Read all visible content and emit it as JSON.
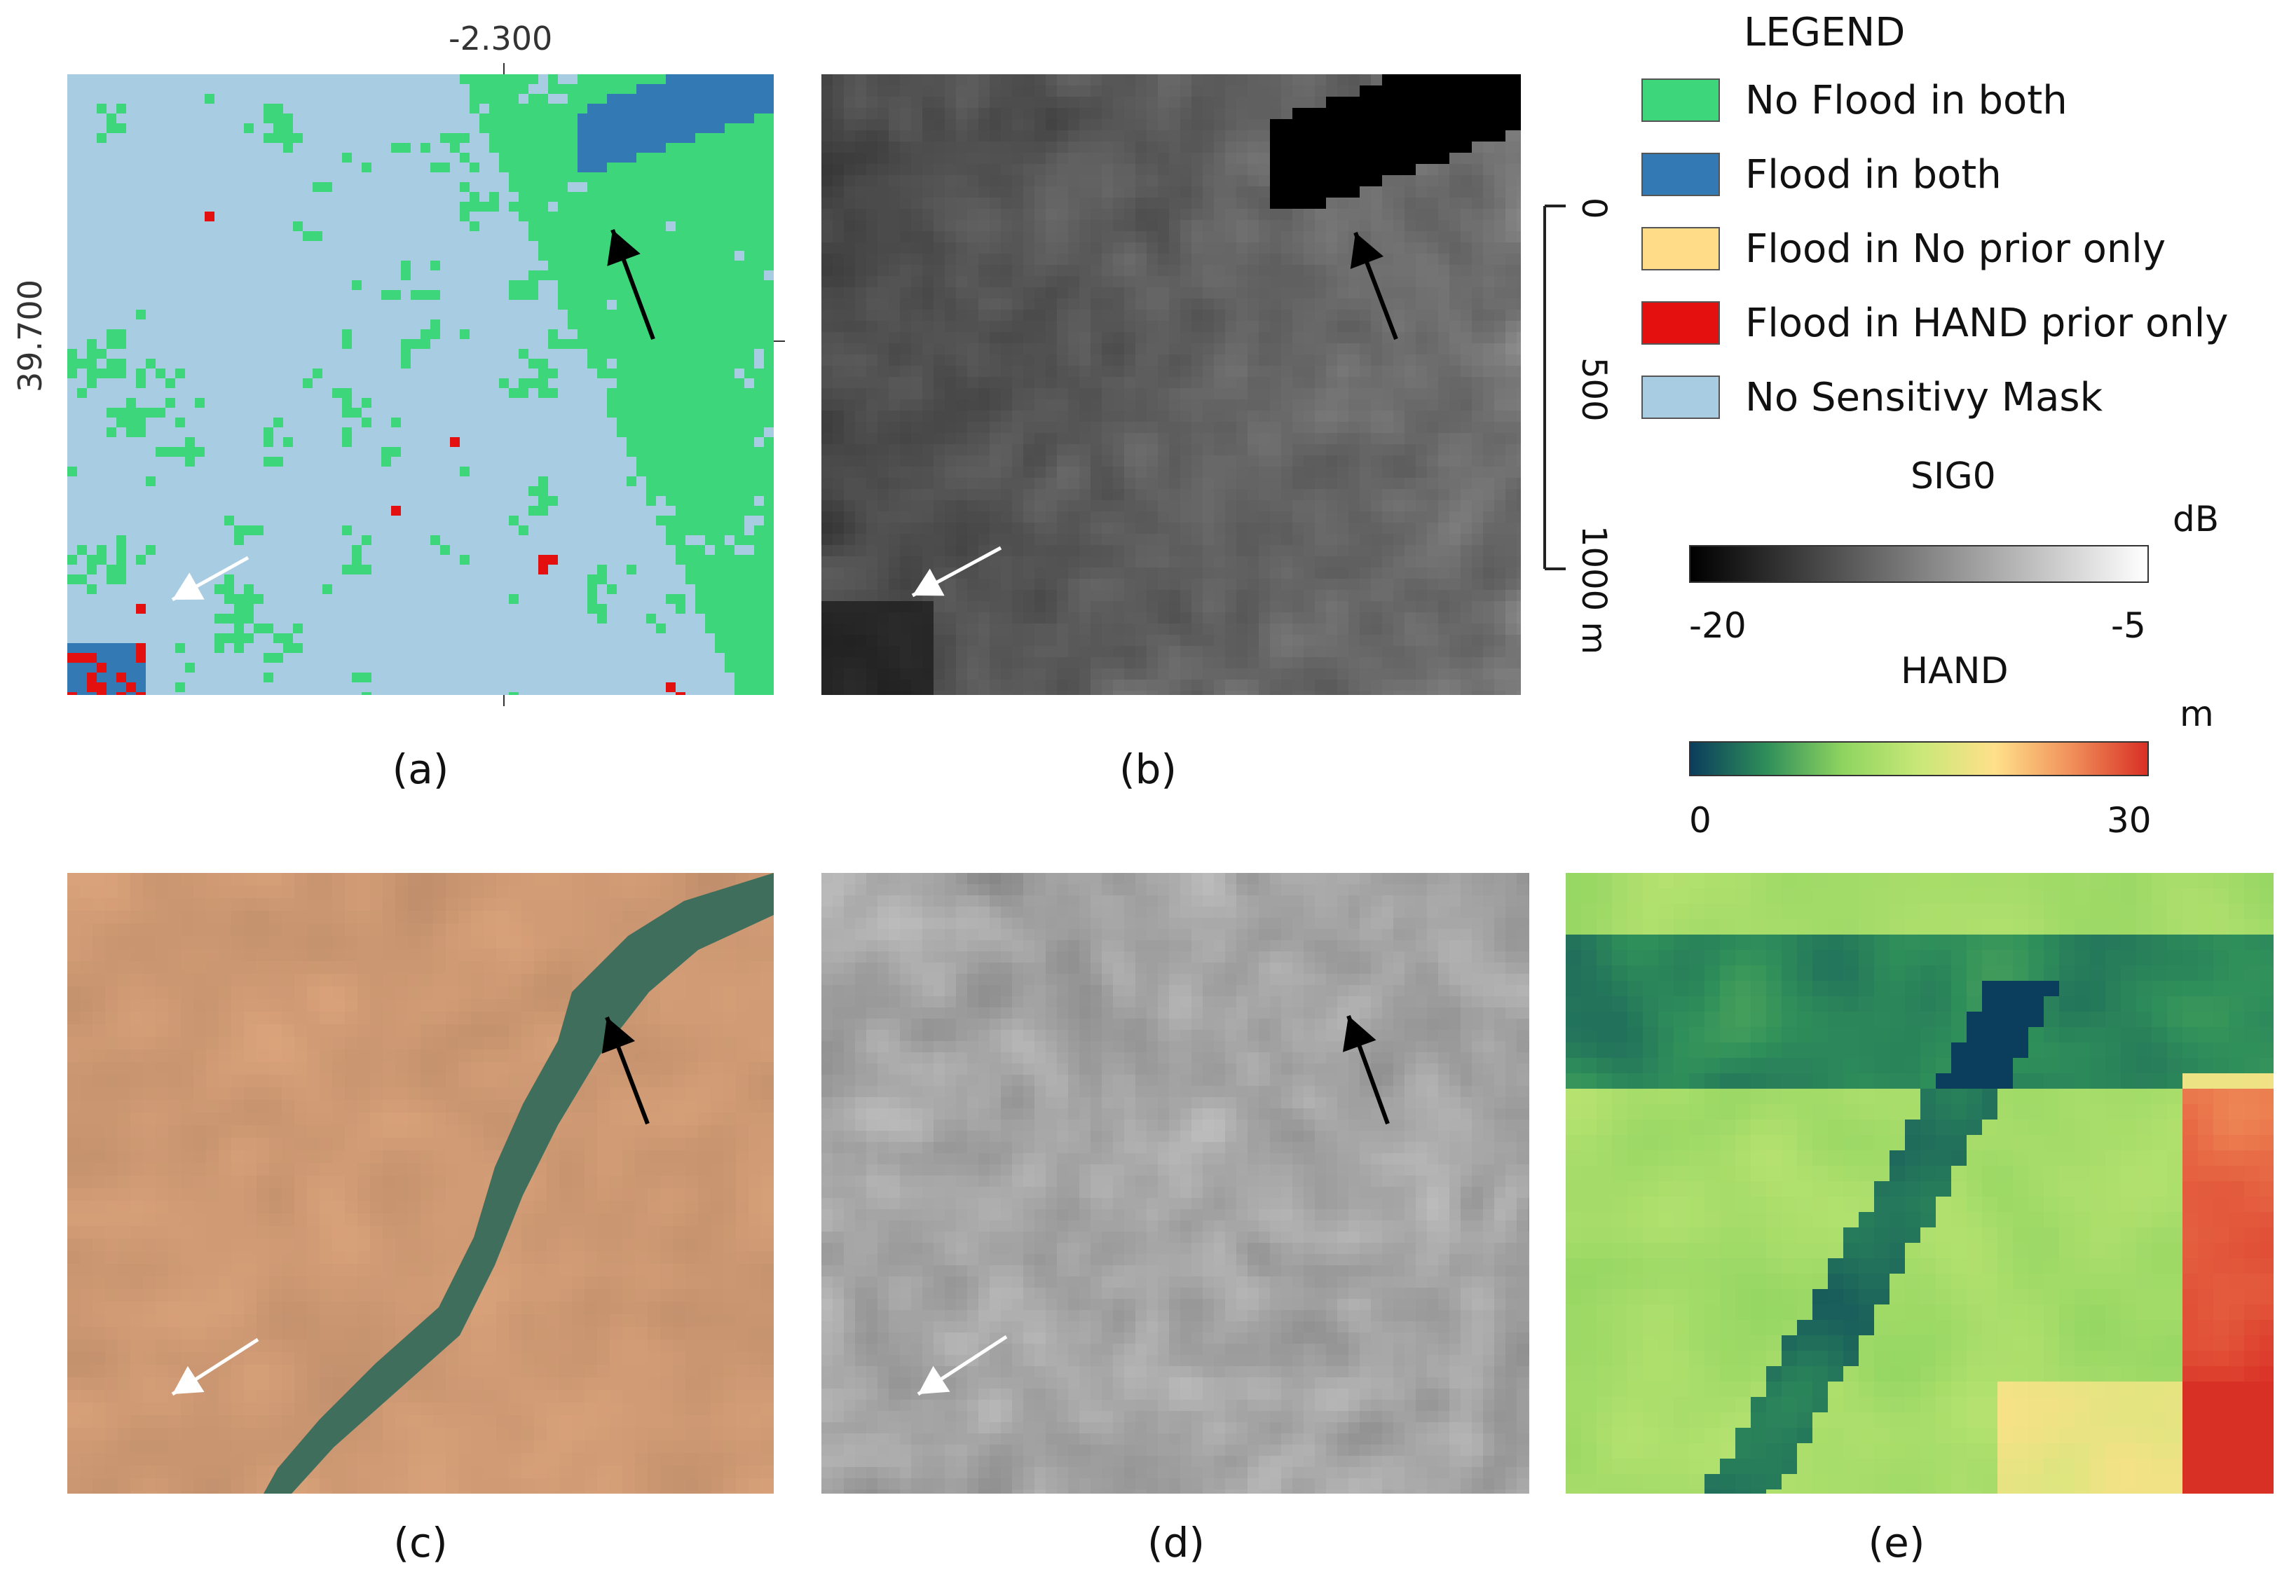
{
  "figure": {
    "panels": [
      {
        "id": "a",
        "caption": "(a)"
      },
      {
        "id": "b",
        "caption": "(b)"
      },
      {
        "id": "c",
        "caption": "(c)"
      },
      {
        "id": "d",
        "caption": "(d)"
      },
      {
        "id": "e",
        "caption": "(e)"
      }
    ],
    "coords": {
      "lon": "-2.300",
      "lat": "39.700"
    }
  },
  "legend": {
    "title": "LEGEND",
    "items": [
      {
        "label": "No Flood in both",
        "color": "#3dd67a"
      },
      {
        "label": "Flood in both",
        "color": "#3379b4"
      },
      {
        "label": "Flood in No prior only",
        "color": "#ffdd88"
      },
      {
        "label": "Flood in HAND prior only",
        "color": "#e41010"
      },
      {
        "label": "No Sensitivy Mask",
        "color": "#a8cde2"
      }
    ]
  },
  "colorbars": {
    "sig0": {
      "title": "SIG0",
      "unit": "dB",
      "min": "-20",
      "max": "-5",
      "colors": [
        "#000000",
        "#ffffff"
      ]
    },
    "hand": {
      "title": "HAND",
      "unit": "m",
      "min": "0",
      "max": "30",
      "colors": [
        "#0b3d5c",
        "#2f8f5a",
        "#8fd460",
        "#c8e878",
        "#ffe08a",
        "#f0905a",
        "#d93025"
      ]
    }
  },
  "scalebar": {
    "ticks": [
      "0",
      "500",
      "1000 m"
    ]
  }
}
